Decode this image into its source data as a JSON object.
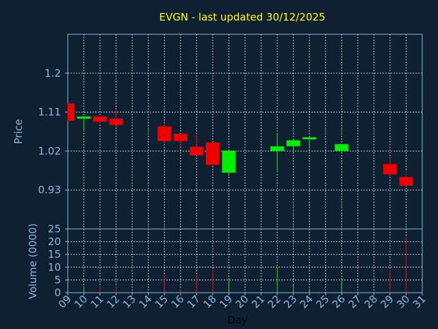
{
  "chart_data": {
    "type": "candlestick",
    "title": "EVGN - last updated 30/12/2025",
    "xlabel": "Day",
    "price": {
      "ylabel": "Price",
      "ylim": [
        0.84,
        1.29
      ],
      "yticks": [
        1.2,
        1.11,
        1.02,
        0.93
      ],
      "ytick_labels": [
        "1.2",
        "1.11",
        "1.02",
        "0.93"
      ]
    },
    "volume": {
      "ylabel": "Volume (0000)",
      "ylim": [
        0,
        25
      ],
      "yticks": [
        0,
        5,
        10,
        15,
        20,
        25
      ],
      "ytick_labels": [
        "0",
        "5",
        "10",
        "15",
        "20",
        "25"
      ]
    },
    "x_range": [
      9,
      31
    ],
    "x_ticks": [
      "09",
      "10",
      "11",
      "12",
      "13",
      "14",
      "15",
      "16",
      "17",
      "18",
      "19",
      "20",
      "21",
      "22",
      "23",
      "24",
      "25",
      "26",
      "27",
      "28",
      "29",
      "30",
      "31"
    ],
    "grid": true,
    "candles": [
      {
        "day": 9,
        "open": 1.13,
        "close": 1.09,
        "high": 1.13,
        "low": 1.09,
        "volume": 0
      },
      {
        "day": 10,
        "open": 1.095,
        "close": 1.1,
        "high": 1.1,
        "low": 1.065,
        "volume": 2.5
      },
      {
        "day": 11,
        "open": 1.1,
        "close": 1.088,
        "high": 1.1,
        "low": 1.082,
        "volume": 2.5
      },
      {
        "day": 12,
        "open": 1.095,
        "close": 1.08,
        "high": 1.117,
        "low": 1.08,
        "volume": 2.5
      },
      {
        "day": 15,
        "open": 1.077,
        "close": 1.043,
        "high": 1.085,
        "low": 1.04,
        "volume": 7
      },
      {
        "day": 16,
        "open": 1.06,
        "close": 1.043,
        "high": 1.06,
        "low": 1.03,
        "volume": 1.5
      },
      {
        "day": 17,
        "open": 1.03,
        "close": 1.01,
        "high": 1.06,
        "low": 1.01,
        "volume": 7
      },
      {
        "day": 18,
        "open": 1.04,
        "close": 0.988,
        "high": 1.04,
        "low": 0.988,
        "volume": 9
      },
      {
        "day": 19,
        "open": 0.97,
        "close": 1.021,
        "high": 1.021,
        "low": 0.962,
        "volume": 5
      },
      {
        "day": 22,
        "open": 1.02,
        "close": 1.031,
        "high": 1.06,
        "low": 0.97,
        "volume": 10
      },
      {
        "day": 23,
        "open": 1.031,
        "close": 1.045,
        "high": 1.048,
        "low": 1.018,
        "volume": 3
      },
      {
        "day": 24,
        "open": 1.049,
        "close": 1.052,
        "high": 1.052,
        "low": 1.025,
        "volume": 1.5
      },
      {
        "day": 26,
        "open": 1.02,
        "close": 1.036,
        "high": 1.036,
        "low": 1.02,
        "volume": 5.5
      },
      {
        "day": 29,
        "open": 0.99,
        "close": 0.966,
        "high": 1.008,
        "low": 0.96,
        "volume": 9
      },
      {
        "day": 30,
        "open": 0.96,
        "close": 0.94,
        "high": 0.975,
        "low": 0.94,
        "volume": 22
      }
    ],
    "colors": {
      "background": "#0f2033",
      "up": "#00ee00",
      "down": "#ee0000",
      "grid": "#ffffff",
      "text": "#8fb4d8",
      "title": "#ffff00"
    }
  }
}
